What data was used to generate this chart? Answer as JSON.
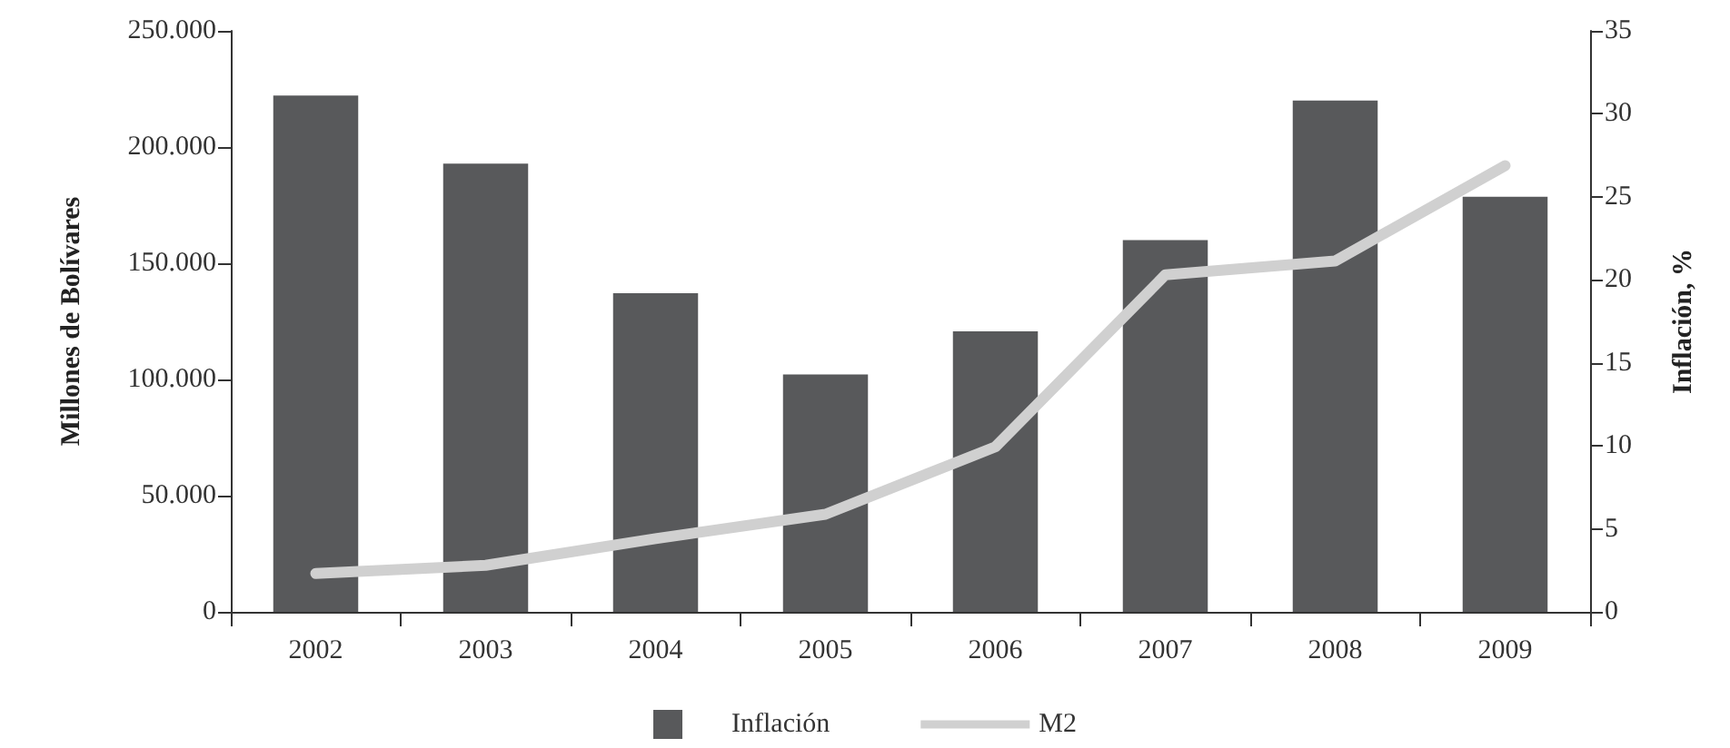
{
  "chart_data": {
    "type": "bar",
    "categories": [
      "2002",
      "2003",
      "2004",
      "2005",
      "2006",
      "2007",
      "2008",
      "2009"
    ],
    "series": [
      {
        "name": "Inflación",
        "axis": "y2",
        "color": "#58595b",
        "values": [
          31.1,
          27.0,
          19.2,
          14.3,
          16.9,
          22.4,
          30.8,
          25.0
        ]
      },
      {
        "name": "M2",
        "type": "line",
        "color": "#d0d0d0",
        "marker": "none",
        "line_style": "solid",
        "values": [
          16500,
          20000,
          31500,
          42000,
          71000,
          145000,
          151000,
          192000
        ]
      }
    ],
    "ylabel": "Millones de Bolívares",
    "y2label": "Inflación, %",
    "ylim": [
      0,
      250000
    ],
    "yticks": [
      {
        "value": 0,
        "label": "0"
      },
      {
        "value": 50000,
        "label": "50.000"
      },
      {
        "value": 100000,
        "label": "100.000"
      },
      {
        "value": 150000,
        "label": "150.000"
      },
      {
        "value": 200000,
        "label": "200.000"
      },
      {
        "value": 250000,
        "label": "250.000"
      }
    ],
    "y2lim": [
      0,
      35
    ],
    "y2ticks": [
      0,
      5,
      10,
      15,
      20,
      25,
      30,
      35
    ],
    "grid": false,
    "legend": "bottom"
  }
}
